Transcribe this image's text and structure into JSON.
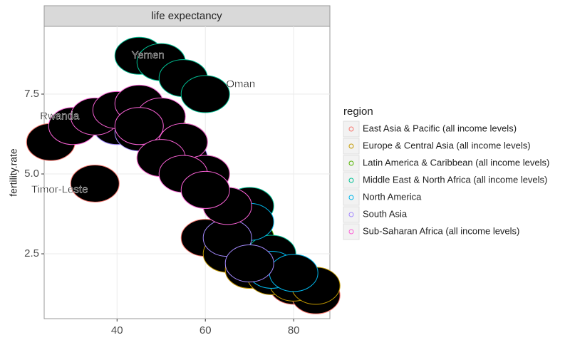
{
  "chart_data": {
    "type": "scatter",
    "strip_title": "life expectancy",
    "y_label": "fertility.rate",
    "xlim": [
      23.5,
      88.2
    ],
    "ylim": [
      0.47,
      9.62
    ],
    "xticks": [
      40,
      60,
      80
    ],
    "yticks": [
      2.5,
      {
        "value": 5,
        "label": "5.0"
      },
      7.5
    ],
    "grid": true,
    "legend_title": "region",
    "series": [
      {
        "name": "East Asia & Pacific (all income levels)",
        "color": "#F8766D",
        "x": [
          25,
          35,
          50,
          60,
          70,
          80,
          85
        ],
        "values": [
          6,
          4.7,
          5.5,
          3,
          2,
          1.5,
          1.2
        ]
      },
      {
        "name": "Europe & Central Asia (all income levels)",
        "color": "#C49A00",
        "x": [
          65,
          70,
          75,
          80,
          85
        ],
        "values": [
          2.5,
          2,
          1.8,
          1.6,
          1.5
        ]
      },
      {
        "name": "Latin America & Caribbean (all income levels)",
        "color": "#53B400",
        "x": [
          50,
          55,
          60,
          65,
          70,
          75
        ],
        "values": [
          6.5,
          6,
          5,
          4,
          3,
          2.2
        ]
      },
      {
        "name": "Middle East & North Africa (all income levels)",
        "color": "#00C094",
        "x": [
          45,
          50,
          55,
          60,
          70,
          75
        ],
        "values": [
          8.7,
          8.5,
          8,
          7.5,
          4,
          2.5
        ]
      },
      {
        "name": "North America",
        "color": "#00B6EB",
        "x": [
          70,
          75,
          80
        ],
        "values": [
          3.5,
          2,
          1.9
        ]
      },
      {
        "name": "South Asia",
        "color": "#A58AFF",
        "x": [
          40,
          45,
          55,
          65,
          70
        ],
        "values": [
          6.5,
          6.3,
          5.5,
          3,
          2.2
        ]
      },
      {
        "name": "Sub-Saharan Africa (all income levels)",
        "color": "#FB61D7",
        "x": [
          30,
          35,
          40,
          45,
          50,
          55,
          60,
          65,
          45,
          50,
          55,
          60
        ],
        "values": [
          6.5,
          6.8,
          7,
          7.2,
          6.8,
          6,
          5,
          4,
          6.5,
          5.5,
          5,
          4.5
        ]
      }
    ],
    "annotations": [
      {
        "text": "Yemen",
        "x": 47,
        "y": 8.7
      },
      {
        "text": "Rwanda",
        "x": 27,
        "y": 6.8
      },
      {
        "text": "Timor-Leste",
        "x": 27,
        "y": 4.5
      },
      {
        "text": "Oman",
        "x": 68,
        "y": 7.8
      }
    ]
  }
}
